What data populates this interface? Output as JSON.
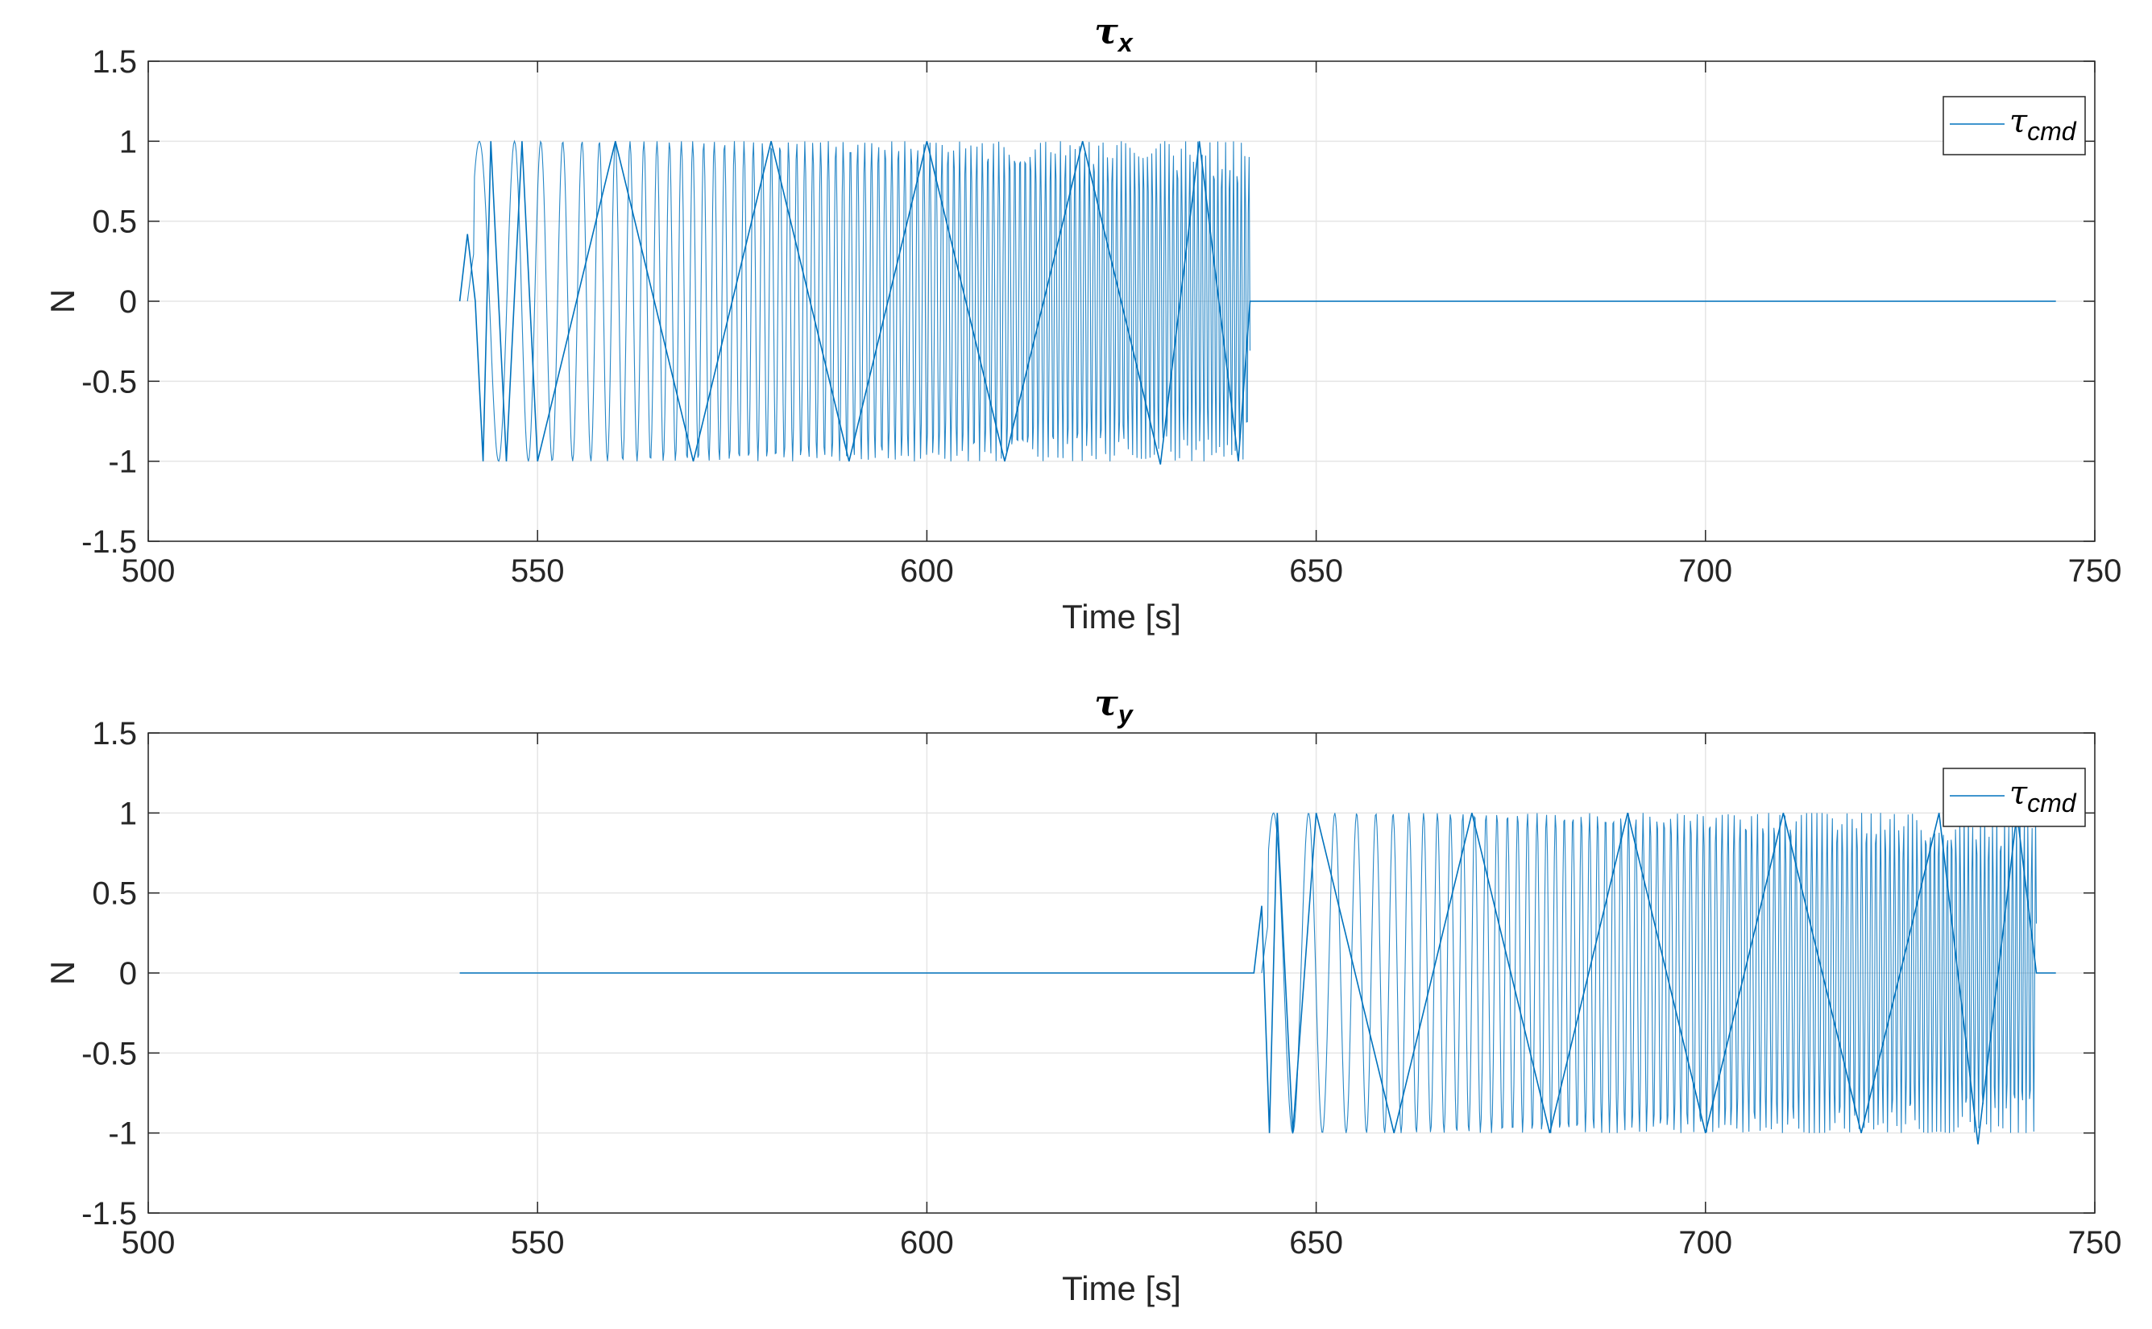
{
  "chart_data": [
    {
      "type": "line",
      "title": {
        "symbol": "τ",
        "subscript": "x"
      },
      "xlabel": "Time [s]",
      "ylabel": "N",
      "xlim": [
        500,
        750
      ],
      "ylim": [
        -1.5,
        1.5
      ],
      "xticks": [
        "500",
        "550",
        "600",
        "650",
        "700",
        "750"
      ],
      "yticks": [
        "-1.5",
        "-1",
        "-0.5",
        "0",
        "0.5",
        "1",
        "1.5"
      ],
      "grid": true,
      "legend": {
        "position": "top-right"
      },
      "series": [
        {
          "name": {
            "symbol": "τ",
            "subscript": "cmd"
          },
          "color": "#0072BD",
          "x_range": [
            540,
            745
          ],
          "x": [
            540,
            541,
            542,
            543,
            544,
            546,
            548,
            550,
            560,
            570,
            580,
            590,
            600,
            610,
            620,
            630,
            635,
            640,
            641.5,
            642,
            650,
            700,
            745
          ],
          "y": [
            0,
            0.42,
            0,
            -1.0,
            1.0,
            -1.0,
            1.0,
            -1.0,
            1.0,
            -1.0,
            1.0,
            -1.0,
            1.0,
            -1.0,
            1.0,
            -1.02,
            1.0,
            -1.0,
            0,
            0,
            0,
            0,
            0
          ]
        }
      ]
    },
    {
      "type": "line",
      "title": {
        "symbol": "τ",
        "subscript": "y"
      },
      "xlabel": "Time [s]",
      "ylabel": "N",
      "xlim": [
        500,
        750
      ],
      "ylim": [
        -1.5,
        1.5
      ],
      "xticks": [
        "500",
        "550",
        "600",
        "650",
        "700",
        "750"
      ],
      "yticks": [
        "-1.5",
        "-1",
        "-0.5",
        "0",
        "0.5",
        "1",
        "1.5"
      ],
      "grid": true,
      "legend": {
        "position": "top-right"
      },
      "series": [
        {
          "name": {
            "symbol": "τ",
            "subscript": "cmd"
          },
          "color": "#0072BD",
          "x_range": [
            540,
            745
          ],
          "x": [
            540,
            600,
            642,
            643,
            644,
            645,
            647,
            650,
            660,
            670,
            680,
            690,
            700,
            710,
            720,
            730,
            735,
            740,
            742.5,
            745
          ],
          "y": [
            0,
            0,
            0,
            0.42,
            -1.0,
            1.0,
            -1.0,
            1.0,
            -1.0,
            1.0,
            -1.0,
            1.0,
            -1.0,
            1.0,
            -1.0,
            1.0,
            -1.07,
            1.0,
            0,
            0
          ]
        }
      ]
    }
  ]
}
